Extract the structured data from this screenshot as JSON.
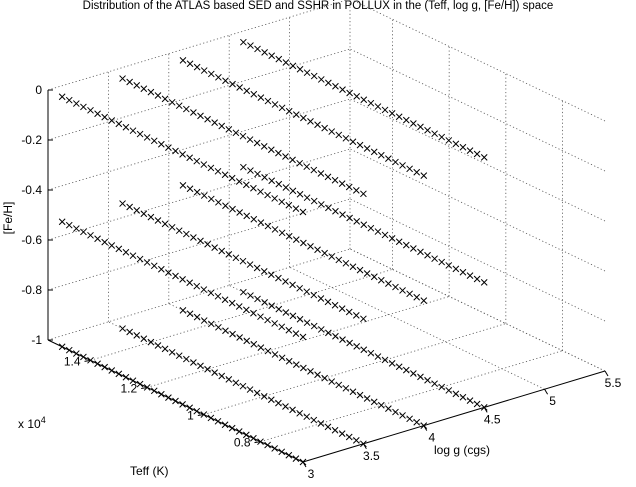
{
  "chart_data": {
    "type": "scatter3d",
    "title": "Distribution of the ATLAS based SED and SSHR in POLLUX in the (Teff, log g, [Fe/H]) space",
    "xlabel": "log g (cgs)",
    "ylabel": "Teff (K)",
    "zlabel": "[Fe/H]",
    "marker": "x",
    "y_exponent_label": "x 10",
    "y_exponent_power": "4",
    "x_ticks": [
      "3",
      "3.5",
      "4",
      "4.5",
      "5",
      "5.5"
    ],
    "y_ticks": [
      "0.8",
      "1",
      "1.2",
      "1.4"
    ],
    "z_ticks": [
      "-1",
      "-0.8",
      "-0.6",
      "-0.4",
      "-0.2",
      "0"
    ],
    "xlim": [
      3,
      5.5
    ],
    "ylim": [
      6500,
      15500
    ],
    "zlim": [
      -1,
      0
    ],
    "grid": true,
    "series": [
      {
        "logg": 3.0,
        "feh": 0.0,
        "teff_range": [
          6500,
          15000
        ],
        "teff_step": 250
      },
      {
        "logg": 3.0,
        "feh": -0.5,
        "teff_range": [
          6500,
          15000
        ],
        "teff_step": 250
      },
      {
        "logg": 3.0,
        "feh": -1.0,
        "teff_range": [
          6500,
          15000
        ],
        "teff_step": 250
      },
      {
        "logg": 3.5,
        "feh": 0.0,
        "teff_range": [
          6500,
          15000
        ],
        "teff_step": 250
      },
      {
        "logg": 3.5,
        "feh": -0.5,
        "teff_range": [
          6500,
          15000
        ],
        "teff_step": 250
      },
      {
        "logg": 3.5,
        "feh": -1.0,
        "teff_range": [
          6500,
          15000
        ],
        "teff_step": 250
      },
      {
        "logg": 4.0,
        "feh": 0.0,
        "teff_range": [
          6500,
          15000
        ],
        "teff_step": 250
      },
      {
        "logg": 4.0,
        "feh": -0.5,
        "teff_range": [
          6500,
          15000
        ],
        "teff_step": 250
      },
      {
        "logg": 4.0,
        "feh": -1.0,
        "teff_range": [
          6500,
          15000
        ],
        "teff_step": 250
      },
      {
        "logg": 4.5,
        "feh": 0.0,
        "teff_range": [
          6500,
          15000
        ],
        "teff_step": 250
      },
      {
        "logg": 4.5,
        "feh": -0.5,
        "teff_range": [
          6500,
          15000
        ],
        "teff_step": 250
      },
      {
        "logg": 4.5,
        "feh": -1.0,
        "teff_range": [
          6500,
          15000
        ],
        "teff_step": 250
      }
    ]
  }
}
